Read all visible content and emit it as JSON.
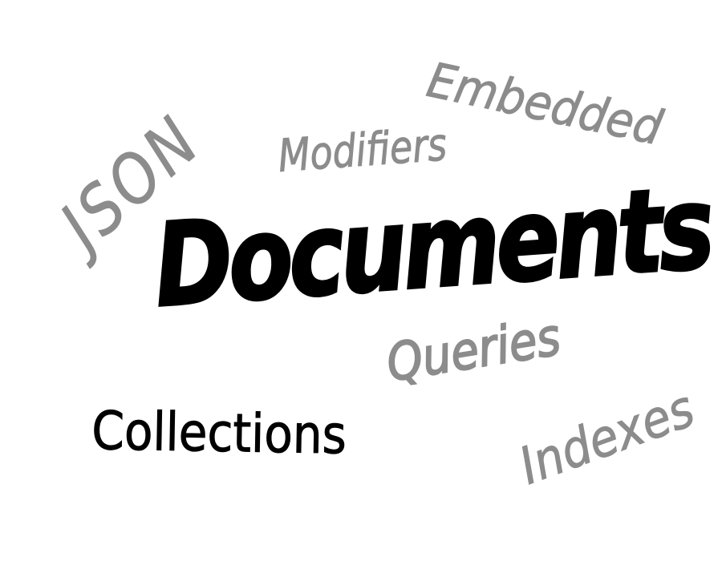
{
  "words": {
    "json": "JSON",
    "embedded": "Embedded",
    "modifiers": "Modifiers",
    "documents": "Documents",
    "queries": "Queries",
    "collections": "Collections",
    "indexes": "Indexes"
  },
  "colors": {
    "background": "#ffffff",
    "primary_ink": "#000000",
    "secondary_ink": "#8c8c8c"
  }
}
